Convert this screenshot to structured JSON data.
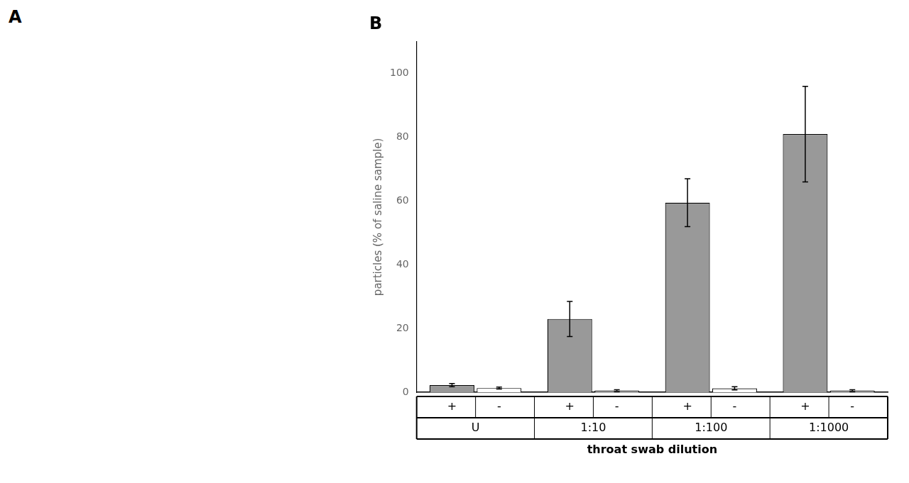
{
  "chart_data": {
    "type": "bar",
    "title": "B",
    "annotations": [
      "A"
    ],
    "xlabel": "throat swab dilution",
    "ylabel": "particles (% of saline sample)",
    "categories": [
      "U",
      "1:10",
      "1:100",
      "1:1000"
    ],
    "series": [
      {
        "name": "+",
        "color": "#999999",
        "values": [
          2.2,
          23.0,
          59.5,
          81.0
        ],
        "errors": [
          0.5,
          5.5,
          7.5,
          15.0
        ]
      },
      {
        "name": "-",
        "color": "#ffffff",
        "values": [
          1.3,
          0.5,
          1.2,
          0.5
        ],
        "errors": [
          0.3,
          0.3,
          0.5,
          0.3
        ]
      }
    ],
    "ylim": [
      0,
      110
    ],
    "yticks": [
      0,
      20,
      40,
      60,
      80,
      100
    ],
    "grid": false
  }
}
